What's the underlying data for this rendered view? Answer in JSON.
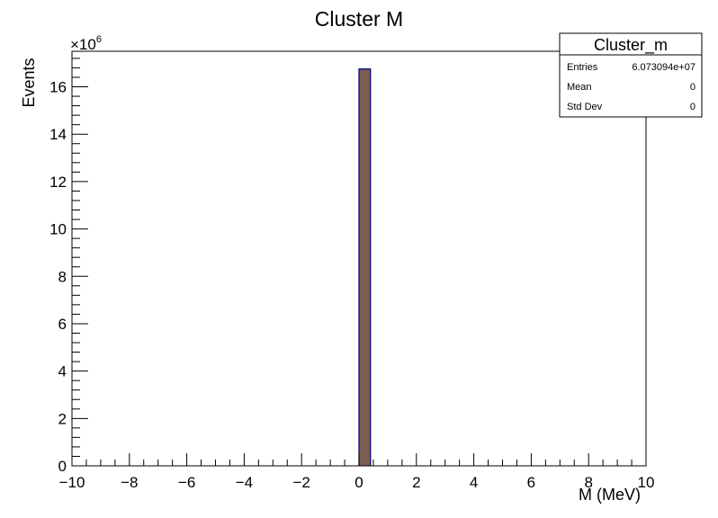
{
  "chart_data": {
    "type": "bar",
    "title": "Cluster M",
    "xlabel": "M (MeV)",
    "ylabel": "Events",
    "y_multiplier": "×10",
    "y_multiplier_exp": "6",
    "xlim": [
      -10,
      10
    ],
    "ylim": [
      0,
      17.5
    ],
    "x_ticks": [
      -10,
      -8,
      -6,
      -4,
      -2,
      0,
      2,
      4,
      6,
      8,
      10
    ],
    "x_tick_labels": [
      "−10",
      "−8",
      "−6",
      "−4",
      "−2",
      "0",
      "2",
      "4",
      "6",
      "8",
      "10"
    ],
    "y_ticks": [
      0,
      2,
      4,
      6,
      8,
      10,
      12,
      14,
      16
    ],
    "y_tick_labels": [
      "0",
      "2",
      "4",
      "6",
      "8",
      "10",
      "12",
      "14",
      "16"
    ],
    "bin_width": 0.4,
    "bins": [
      {
        "x_low": 0.0,
        "x_high": 0.4,
        "value": 16.75
      }
    ],
    "fill_color": "#7a5e52",
    "line_color": "#000080",
    "grid": false,
    "legend": "none"
  },
  "stats_box": {
    "title": "Cluster_m",
    "rows": [
      {
        "label": "Entries",
        "value": "6.073094e+07"
      },
      {
        "label": "Mean",
        "value": "0"
      },
      {
        "label": "Std Dev",
        "value": "0"
      }
    ]
  }
}
